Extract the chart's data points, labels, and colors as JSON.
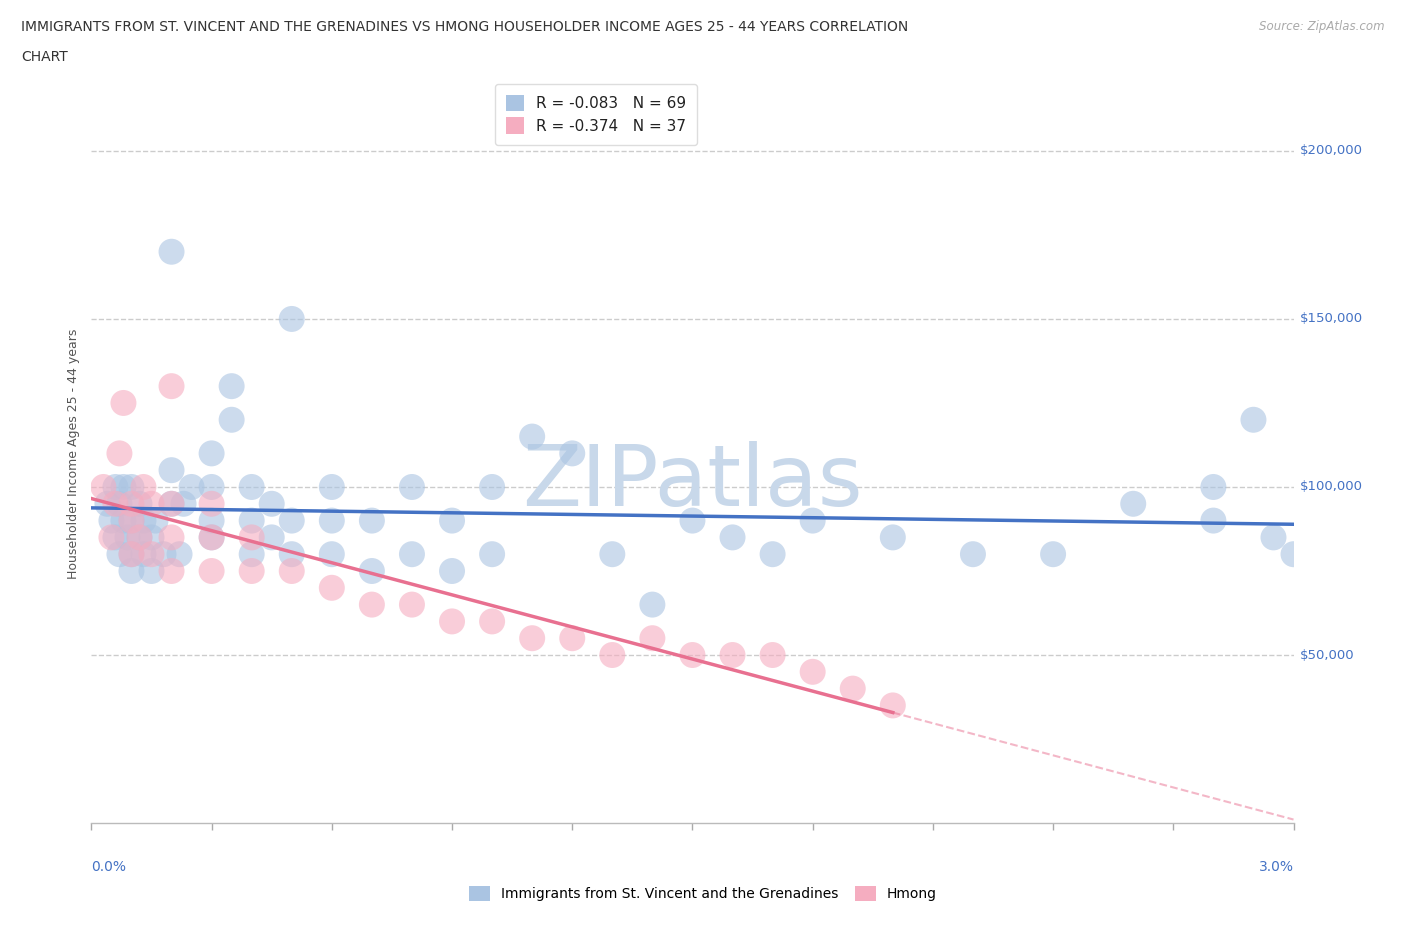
{
  "title_line1": "IMMIGRANTS FROM ST. VINCENT AND THE GRENADINES VS HMONG HOUSEHOLDER INCOME AGES 25 - 44 YEARS CORRELATION",
  "title_line2": "CHART",
  "source_text": "Source: ZipAtlas.com",
  "ylabel": "Householder Income Ages 25 - 44 years",
  "legend1_label": "Immigrants from St. Vincent and the Grenadines",
  "legend2_label": "Hmong",
  "R1": -0.083,
  "N1": 69,
  "R2": -0.374,
  "N2": 37,
  "color1": "#aac4e2",
  "color2": "#f5adc0",
  "trend1_color": "#4472c4",
  "trend2_color": "#e87090",
  "watermark": "ZIPatlas",
  "watermark_color": "#c8d8ea",
  "xmin": 0.0,
  "xmax": 0.03,
  "ymin": 0,
  "ymax": 220000,
  "yticks": [
    50000,
    100000,
    150000,
    200000
  ],
  "ytick_labels": [
    "$50,000",
    "$100,000",
    "$150,000",
    "$200,000"
  ],
  "blue_scatter_x": [
    0.0004,
    0.0005,
    0.0006,
    0.0006,
    0.0007,
    0.0007,
    0.0008,
    0.0008,
    0.0009,
    0.001,
    0.001,
    0.001,
    0.001,
    0.0012,
    0.0012,
    0.0013,
    0.0013,
    0.0015,
    0.0015,
    0.0016,
    0.0018,
    0.002,
    0.002,
    0.002,
    0.0022,
    0.0023,
    0.0025,
    0.003,
    0.003,
    0.003,
    0.003,
    0.0035,
    0.0035,
    0.004,
    0.004,
    0.004,
    0.0045,
    0.0045,
    0.005,
    0.005,
    0.005,
    0.006,
    0.006,
    0.006,
    0.007,
    0.007,
    0.008,
    0.008,
    0.009,
    0.009,
    0.01,
    0.01,
    0.011,
    0.012,
    0.013,
    0.014,
    0.015,
    0.016,
    0.017,
    0.018,
    0.02,
    0.022,
    0.024,
    0.026,
    0.028,
    0.028,
    0.029,
    0.0295,
    0.03
  ],
  "blue_scatter_y": [
    95000,
    90000,
    85000,
    100000,
    80000,
    95000,
    90000,
    100000,
    85000,
    75000,
    80000,
    90000,
    100000,
    85000,
    95000,
    80000,
    90000,
    75000,
    85000,
    90000,
    80000,
    95000,
    105000,
    170000,
    80000,
    95000,
    100000,
    90000,
    85000,
    100000,
    110000,
    120000,
    130000,
    80000,
    90000,
    100000,
    85000,
    95000,
    80000,
    90000,
    150000,
    80000,
    90000,
    100000,
    75000,
    90000,
    80000,
    100000,
    75000,
    90000,
    80000,
    100000,
    115000,
    110000,
    80000,
    65000,
    90000,
    85000,
    80000,
    90000,
    85000,
    80000,
    80000,
    95000,
    90000,
    100000,
    120000,
    85000,
    80000
  ],
  "pink_scatter_x": [
    0.0003,
    0.0005,
    0.0006,
    0.0007,
    0.0008,
    0.001,
    0.001,
    0.001,
    0.0012,
    0.0013,
    0.0015,
    0.0015,
    0.002,
    0.002,
    0.002,
    0.002,
    0.003,
    0.003,
    0.003,
    0.004,
    0.004,
    0.005,
    0.006,
    0.007,
    0.008,
    0.009,
    0.01,
    0.011,
    0.012,
    0.013,
    0.014,
    0.015,
    0.016,
    0.017,
    0.018,
    0.019,
    0.02
  ],
  "pink_scatter_y": [
    100000,
    85000,
    95000,
    110000,
    125000,
    90000,
    95000,
    80000,
    85000,
    100000,
    80000,
    95000,
    75000,
    85000,
    95000,
    130000,
    75000,
    85000,
    95000,
    75000,
    85000,
    75000,
    70000,
    65000,
    65000,
    60000,
    60000,
    55000,
    55000,
    50000,
    55000,
    50000,
    50000,
    50000,
    45000,
    40000,
    35000
  ]
}
